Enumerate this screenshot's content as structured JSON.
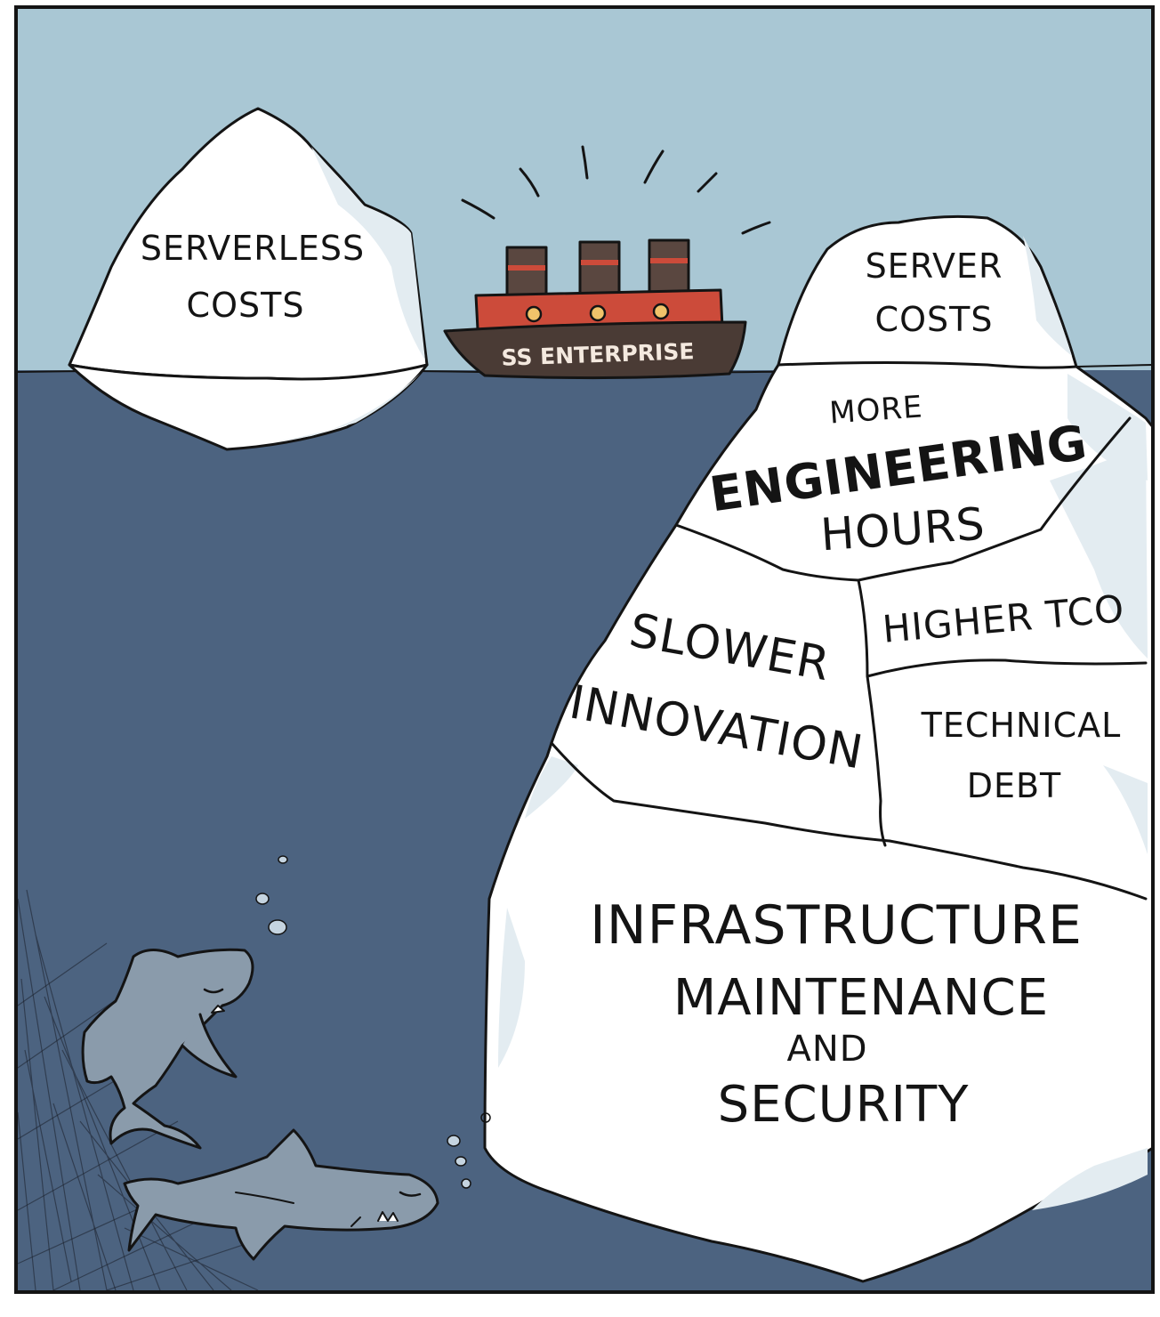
{
  "panel": {
    "colors": {
      "sky": "#a9c7d4",
      "water": "#4c6380",
      "ice": "#ffffff",
      "ice_shade": "#e3ecf1",
      "ink": "#141414",
      "ship_hull": "#4a3b35",
      "ship_body": "#cc4b3a",
      "ship_stack": "#5a4740",
      "shark": "#8a9bab"
    }
  },
  "left_iceberg": {
    "line1": "SERVERLESS",
    "line2": "COSTS"
  },
  "ship": {
    "name": "SS ENTERPRISE"
  },
  "right_iceberg": {
    "tip": {
      "line1": "SERVER",
      "line2": "COSTS"
    },
    "engineering": {
      "line1": "MORE",
      "line2": "ENGINEERING",
      "line3": "HOURS"
    },
    "innovation": {
      "line1": "SLOWER",
      "line2": "INNOVATION"
    },
    "tco": {
      "line1": "HIGHER TCO"
    },
    "debt": {
      "line1": "TECHNICAL",
      "line2": "DEBT"
    },
    "infrastructure": {
      "line1": "INFRASTRUCTURE",
      "line2": "MAINTENANCE",
      "line3": "AND",
      "line4": "SECURITY"
    }
  }
}
